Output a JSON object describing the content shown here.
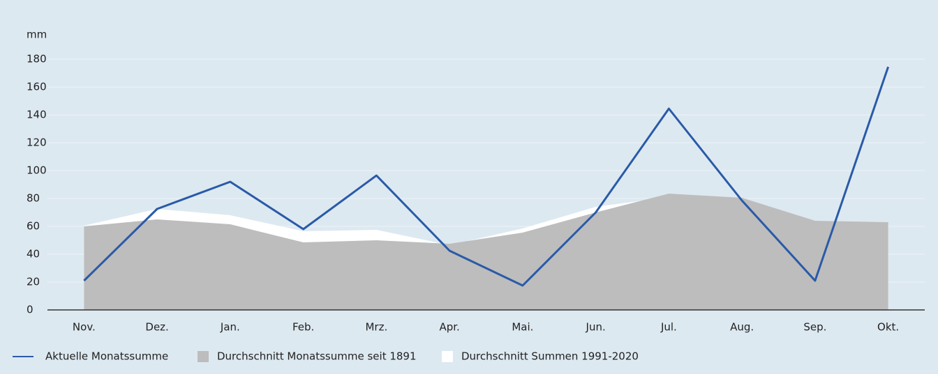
{
  "chart_data": {
    "type": "line",
    "ylabel": "mm",
    "categories": [
      "Nov.",
      "Dez.",
      "Jan.",
      "Feb.",
      "Mrz.",
      "Apr.",
      "Mai.",
      "Jun.",
      "Jul.",
      "Aug.",
      "Sep.",
      "Okt."
    ],
    "series": [
      {
        "name": "Aktuelle Monatssumme",
        "type": "line",
        "color": "#2a5aa8",
        "values": [
          21,
          72.5,
          92,
          58,
          96.5,
          42.5,
          17.5,
          70,
          144.5,
          78.5,
          21,
          174.5
        ]
      },
      {
        "name": "Durchschnitt Monatssumme seit 1891",
        "type": "area",
        "color": "#bdbdbd",
        "values": [
          60,
          65,
          61.5,
          48.5,
          50,
          47.5,
          55.5,
          70,
          83.5,
          80.5,
          64,
          63
        ]
      },
      {
        "name": "Durchschnitt Summen 1991-2020",
        "type": "area",
        "color": "#ffffff",
        "values": [
          60.5,
          72.5,
          68,
          56.5,
          57.5,
          46.5,
          58.5,
          74,
          81,
          79,
          62.5,
          61.5
        ]
      }
    ],
    "ylim": [
      0,
      180
    ],
    "yticks": [
      0,
      20,
      40,
      60,
      80,
      100,
      120,
      140,
      160,
      180
    ],
    "grid": true
  }
}
